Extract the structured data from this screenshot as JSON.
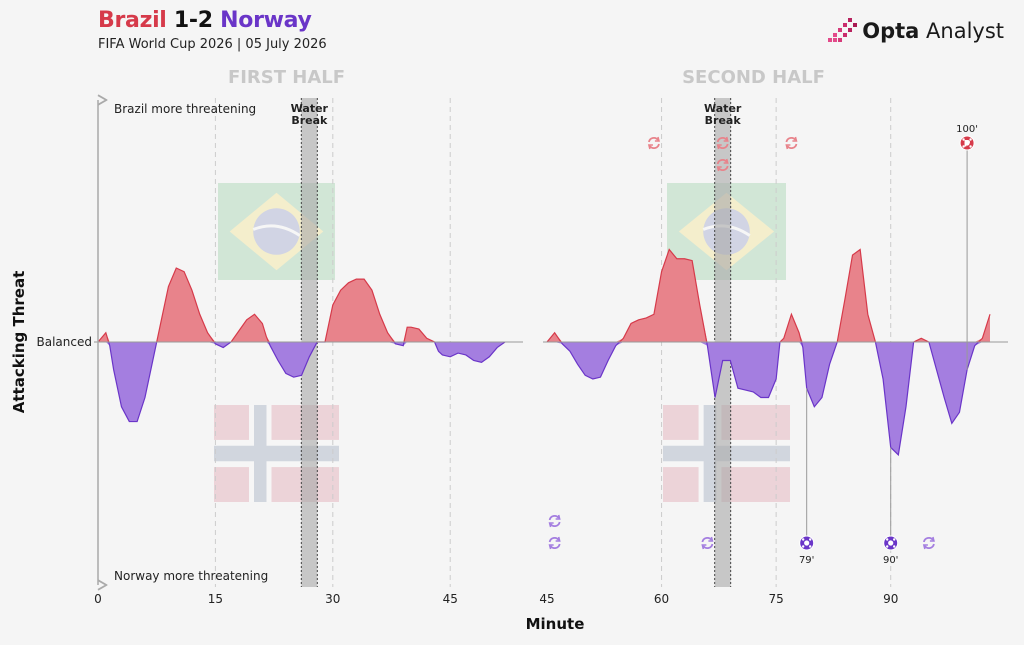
{
  "header": {
    "title_team1": "Brazil",
    "title_score": " 1-2 ",
    "title_team2": "Norway",
    "subtitle": "FIFA World Cup 2026 | 05 July 2026"
  },
  "logo": {
    "bold": "Opta",
    "rest": " Analyst"
  },
  "colors": {
    "brazil": "#e8838b",
    "brazil_line": "#d63a4a",
    "norway": "#a47ee0",
    "norway_line": "#6a35c8",
    "grid": "#cccccc"
  },
  "chart_data": {
    "type": "area",
    "title": "",
    "xlabel": "Minute",
    "ylabel": "Attacking Threat",
    "y_center_label": "Balanced",
    "y_top_label": "Brazil more threatening",
    "y_bottom_label": "Norway more threatening",
    "ylim": [
      -1,
      1
    ],
    "panels": [
      {
        "label": "FIRST HALF",
        "xlim": [
          0,
          52
        ],
        "ticks": [
          0,
          15,
          30,
          45
        ],
        "gridlines": [
          15,
          30,
          45
        ],
        "water_break": {
          "minute": 27,
          "label_line1": "Water",
          "label_line2": "Break"
        },
        "series": [
          [
            0,
            0
          ],
          [
            1,
            0.05
          ],
          [
            1.5,
            -0.02
          ],
          [
            2,
            -0.15
          ],
          [
            3,
            -0.35
          ],
          [
            4,
            -0.43
          ],
          [
            5,
            -0.43
          ],
          [
            6,
            -0.3
          ],
          [
            7,
            -0.1
          ],
          [
            7.5,
            0
          ],
          [
            8,
            0.1
          ],
          [
            9,
            0.3
          ],
          [
            10,
            0.4
          ],
          [
            11,
            0.38
          ],
          [
            12,
            0.28
          ],
          [
            13,
            0.15
          ],
          [
            14,
            0.05
          ],
          [
            15,
            -0.01
          ],
          [
            16,
            -0.03
          ],
          [
            17,
            0
          ],
          [
            18,
            0.06
          ],
          [
            19,
            0.12
          ],
          [
            20,
            0.15
          ],
          [
            21,
            0.1
          ],
          [
            21.5,
            0.03
          ],
          [
            22,
            -0.02
          ],
          [
            23,
            -0.1
          ],
          [
            24,
            -0.17
          ],
          [
            25,
            -0.19
          ],
          [
            26,
            -0.18
          ],
          [
            27,
            -0.08
          ],
          [
            28,
            0
          ],
          [
            29,
            0
          ],
          [
            30,
            0.2
          ],
          [
            31,
            0.28
          ],
          [
            32,
            0.32
          ],
          [
            33,
            0.34
          ],
          [
            34,
            0.34
          ],
          [
            35,
            0.28
          ],
          [
            36,
            0.15
          ],
          [
            37,
            0.05
          ],
          [
            38,
            -0.01
          ],
          [
            39,
            -0.02
          ],
          [
            39.5,
            0.08
          ],
          [
            40,
            0.08
          ],
          [
            41,
            0.07
          ],
          [
            42,
            0.02
          ],
          [
            43,
            0
          ],
          [
            43.5,
            -0.05
          ],
          [
            44,
            -0.07
          ],
          [
            45,
            -0.08
          ],
          [
            46,
            -0.06
          ],
          [
            47,
            -0.07
          ],
          [
            48,
            -0.1
          ],
          [
            49,
            -0.11
          ],
          [
            50,
            -0.08
          ],
          [
            51,
            -0.03
          ],
          [
            52,
            0
          ]
        ]
      },
      {
        "label": "SECOND HALF",
        "xlim": [
          45,
          103
        ],
        "ticks": [
          45,
          60,
          75,
          90
        ],
        "gridlines": [
          60,
          75,
          90
        ],
        "water_break": {
          "minute": 68,
          "label_line1": "Water",
          "label_line2": "Break"
        },
        "series": [
          [
            45,
            0
          ],
          [
            46,
            0.05
          ],
          [
            47,
            -0.01
          ],
          [
            48,
            -0.05
          ],
          [
            49,
            -0.12
          ],
          [
            50,
            -0.18
          ],
          [
            51,
            -0.2
          ],
          [
            52,
            -0.19
          ],
          [
            53,
            -0.1
          ],
          [
            54,
            -0.02
          ],
          [
            55,
            0.02
          ],
          [
            56,
            0.1
          ],
          [
            57,
            0.12
          ],
          [
            58,
            0.13
          ],
          [
            59,
            0.15
          ],
          [
            60,
            0.38
          ],
          [
            61,
            0.5
          ],
          [
            62,
            0.45
          ],
          [
            62.5,
            0.45
          ],
          [
            63,
            0.45
          ],
          [
            64,
            0.44
          ],
          [
            65,
            0.2
          ],
          [
            66,
            -0.02
          ],
          [
            67,
            -0.3
          ],
          [
            68,
            -0.1
          ],
          [
            69,
            -0.1
          ],
          [
            70,
            -0.25
          ],
          [
            71,
            -0.26
          ],
          [
            72,
            -0.27
          ],
          [
            73,
            -0.3
          ],
          [
            74,
            -0.3
          ],
          [
            75,
            -0.2
          ],
          [
            75.5,
            0
          ],
          [
            76,
            0.02
          ],
          [
            77,
            0.15
          ],
          [
            78,
            0.05
          ],
          [
            78.5,
            -0.03
          ],
          [
            79,
            -0.25
          ],
          [
            80,
            -0.35
          ],
          [
            81,
            -0.3
          ],
          [
            82,
            -0.12
          ],
          [
            83,
            0
          ],
          [
            84,
            0.23
          ],
          [
            85,
            0.47
          ],
          [
            86,
            0.5
          ],
          [
            87,
            0.15
          ],
          [
            88,
            0
          ],
          [
            89,
            -0.2
          ],
          [
            90,
            -0.57
          ],
          [
            91,
            -0.61
          ],
          [
            92,
            -0.35
          ],
          [
            93,
            0
          ],
          [
            94,
            0.02
          ],
          [
            95,
            0
          ],
          [
            96,
            -0.15
          ],
          [
            97,
            -0.3
          ],
          [
            98,
            -0.44
          ],
          [
            99,
            -0.38
          ],
          [
            100,
            -0.15
          ],
          [
            101,
            -0.02
          ],
          [
            102,
            0.02
          ],
          [
            103,
            0.15
          ]
        ]
      }
    ],
    "events": [
      {
        "team": "Brazil",
        "type": "substitution",
        "minute": 59,
        "row": 0
      },
      {
        "team": "Brazil",
        "type": "substitution",
        "minute": 68,
        "row": 0
      },
      {
        "team": "Brazil",
        "type": "substitution",
        "minute": 68,
        "row": 1
      },
      {
        "team": "Brazil",
        "type": "substitution",
        "minute": 77,
        "row": 0
      },
      {
        "team": "Brazil",
        "type": "penalty-goal",
        "minute": 100,
        "label": "100'"
      },
      {
        "team": "Norway",
        "type": "substitution",
        "minute": 46,
        "row": 0
      },
      {
        "team": "Norway",
        "type": "substitution",
        "minute": 46,
        "row": 1
      },
      {
        "team": "Norway",
        "type": "substitution",
        "minute": 66,
        "row": 1
      },
      {
        "team": "Norway",
        "type": "substitution",
        "minute": 95,
        "row": 1
      },
      {
        "team": "Norway",
        "type": "goal",
        "minute": 79,
        "label": "79'"
      },
      {
        "team": "Norway",
        "type": "goal",
        "minute": 90,
        "label": "90'"
      }
    ],
    "grid": true,
    "legend": "none"
  }
}
